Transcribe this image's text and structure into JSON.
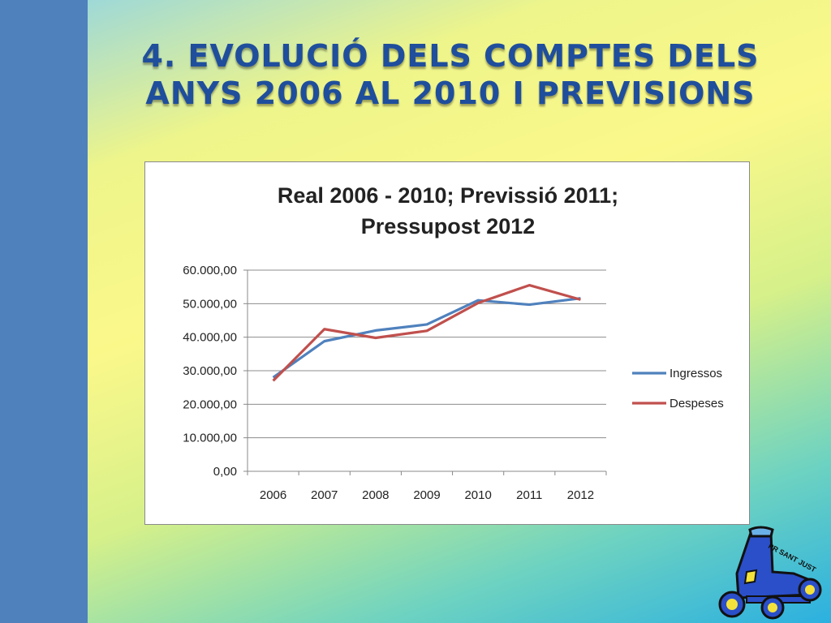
{
  "slide": {
    "title_line1": "4. EVOLUCIÓ DELS  COMPTES DELS",
    "title_line2": "ANYS 2006 AL 2010 I PREVISIONS"
  },
  "colors": {
    "left_bar": "#4f81bd",
    "title": "#1f4e9c",
    "ingressos": "#4f81bd",
    "despeses": "#c0504d"
  },
  "chart_data": {
    "type": "line",
    "title_line1": "Real 2006 - 2010; Previssió 2011;",
    "title_line2": "Pressupost 2012",
    "categories": [
      "2006",
      "2007",
      "2008",
      "2009",
      "2010",
      "2011",
      "2012"
    ],
    "series": [
      {
        "name": "Ingressos",
        "values": [
          28000,
          38800,
          42000,
          43800,
          51000,
          49700,
          51600
        ]
      },
      {
        "name": "Despeses",
        "values": [
          27000,
          42400,
          39800,
          41900,
          50200,
          55500,
          51200
        ]
      }
    ],
    "ylim": [
      0,
      60000
    ],
    "yticks": [
      "0,00",
      "10.000,00",
      "20.000,00",
      "30.000,00",
      "40.000,00",
      "50.000,00",
      "60.000,00"
    ],
    "grid": true,
    "legend": "right"
  },
  "logo": {
    "text": "PR SANT JUST"
  }
}
